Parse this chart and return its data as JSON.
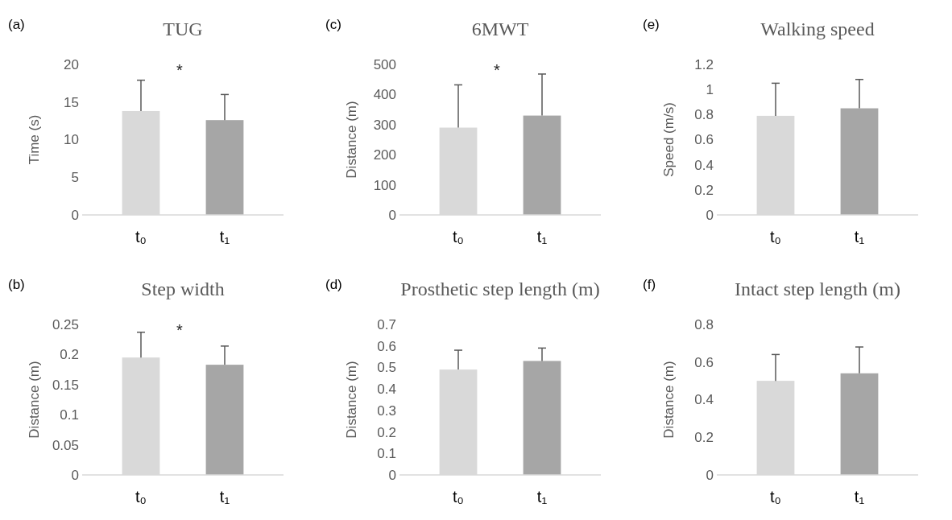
{
  "chart_data": [
    {
      "type": "bar",
      "title": "TUG",
      "ylabel": "Time (s)",
      "categories": [
        "t₀",
        "t₁"
      ],
      "values": [
        13.8,
        12.6
      ],
      "colors": [
        "#d9d9d9",
        "#a6a6a6"
      ],
      "errors": [
        [
          13.8,
          17.9
        ],
        [
          12.6,
          16.0
        ]
      ],
      "ylim": [
        0,
        20
      ],
      "yticks": [
        0,
        5,
        10,
        15,
        20
      ],
      "annotations": [
        "(a)",
        "*"
      ]
    },
    {
      "type": "bar",
      "title": "6MWT",
      "ylabel": "Distance (m)",
      "categories": [
        "t₀",
        "t₁"
      ],
      "values": [
        290,
        330
      ],
      "colors": [
        "#d9d9d9",
        "#a6a6a6"
      ],
      "errors": [
        [
          290,
          432
        ],
        [
          330,
          468
        ]
      ],
      "ylim": [
        0,
        500
      ],
      "yticks": [
        0,
        100,
        200,
        300,
        400,
        500
      ],
      "annotations": [
        "(c)",
        "*"
      ]
    },
    {
      "type": "bar",
      "title": "Walking speed",
      "ylabel": "Speed (m/s)",
      "categories": [
        "t₀",
        "t₁"
      ],
      "values": [
        0.79,
        0.85
      ],
      "colors": [
        "#d9d9d9",
        "#a6a6a6"
      ],
      "errors": [
        [
          0.79,
          1.05
        ],
        [
          0.85,
          1.08
        ]
      ],
      "ylim": [
        0,
        1.2
      ],
      "yticks": [
        0,
        0.2,
        0.4,
        0.6,
        0.8,
        1,
        1.2
      ],
      "annotations": [
        "(e)"
      ]
    },
    {
      "type": "bar",
      "title": "Step width",
      "ylabel": "Distance (m)",
      "categories": [
        "t₀",
        "t₁"
      ],
      "values": [
        0.195,
        0.183
      ],
      "colors": [
        "#d9d9d9",
        "#a6a6a6"
      ],
      "errors": [
        [
          0.195,
          0.237
        ],
        [
          0.183,
          0.214
        ]
      ],
      "ylim": [
        0,
        0.25
      ],
      "yticks": [
        0,
        0.05,
        0.1,
        0.15,
        0.2,
        0.25
      ],
      "annotations": [
        "(b)",
        "*"
      ]
    },
    {
      "type": "bar",
      "title": "Prosthetic  step length (m)",
      "ylabel": "Distance (m)",
      "categories": [
        "t₀",
        "t₁"
      ],
      "values": [
        0.49,
        0.53
      ],
      "colors": [
        "#d9d9d9",
        "#a6a6a6"
      ],
      "errors": [
        [
          0.49,
          0.58
        ],
        [
          0.53,
          0.59
        ]
      ],
      "ylim": [
        0,
        0.7
      ],
      "yticks": [
        0,
        0.1,
        0.2,
        0.3,
        0.4,
        0.5,
        0.6,
        0.7
      ],
      "annotations": [
        "(d)"
      ]
    },
    {
      "type": "bar",
      "title": "Intact step length (m)",
      "ylabel": "Distance (m)",
      "categories": [
        "t₀",
        "t₁"
      ],
      "values": [
        0.5,
        0.54
      ],
      "colors": [
        "#d9d9d9",
        "#a6a6a6"
      ],
      "errors": [
        [
          0.5,
          0.64
        ],
        [
          0.54,
          0.68
        ]
      ],
      "ylim": [
        0,
        0.8
      ],
      "yticks": [
        0,
        0.2,
        0.4,
        0.6,
        0.8
      ],
      "annotations": [
        "(f)"
      ]
    }
  ]
}
